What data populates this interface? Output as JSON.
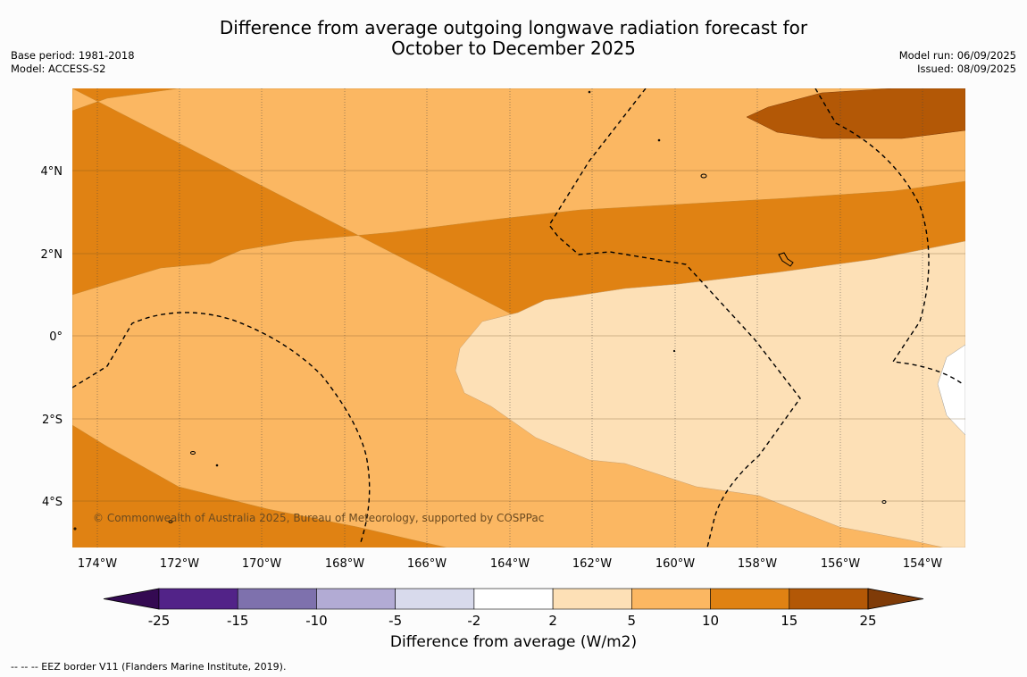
{
  "title_line1": "Difference from average outgoing longwave radiation forecast for",
  "title_line2": "October to December 2025",
  "meta_left": {
    "base_period": "Base period: 1981-2018",
    "model": "Model: ACCESS-S2"
  },
  "meta_right": {
    "model_run": "Model run: 06/09/2025",
    "issued": "Issued: 08/09/2025"
  },
  "copyright": "© Commonwealth of Australia 2025, Bureau of Meteorology, supported by COSPPac",
  "lat_labels": [
    "4°N",
    "2°N",
    "0°",
    "2°S",
    "4°S"
  ],
  "lon_labels": [
    "174°W",
    "172°W",
    "170°W",
    "168°W",
    "166°W",
    "164°W",
    "162°W",
    "160°W",
    "158°W",
    "156°W",
    "154°W"
  ],
  "colorbar": {
    "label": "Difference from average (W/m2)",
    "ticks": [
      "-25",
      "-15",
      "-10",
      "-5",
      "-2",
      "2",
      "5",
      "10",
      "15",
      "25"
    ],
    "colors": [
      "#340a52",
      "#522388",
      "#7e71ad",
      "#b2abd4",
      "#d8daec",
      "#ffffff",
      "#fde0b6",
      "#fbb762",
      "#e08213",
      "#b35806",
      "#7f3b08"
    ]
  },
  "footnote": "--  --  -- EEZ border V11 (Flanders Marine Institute, 2019)."
}
